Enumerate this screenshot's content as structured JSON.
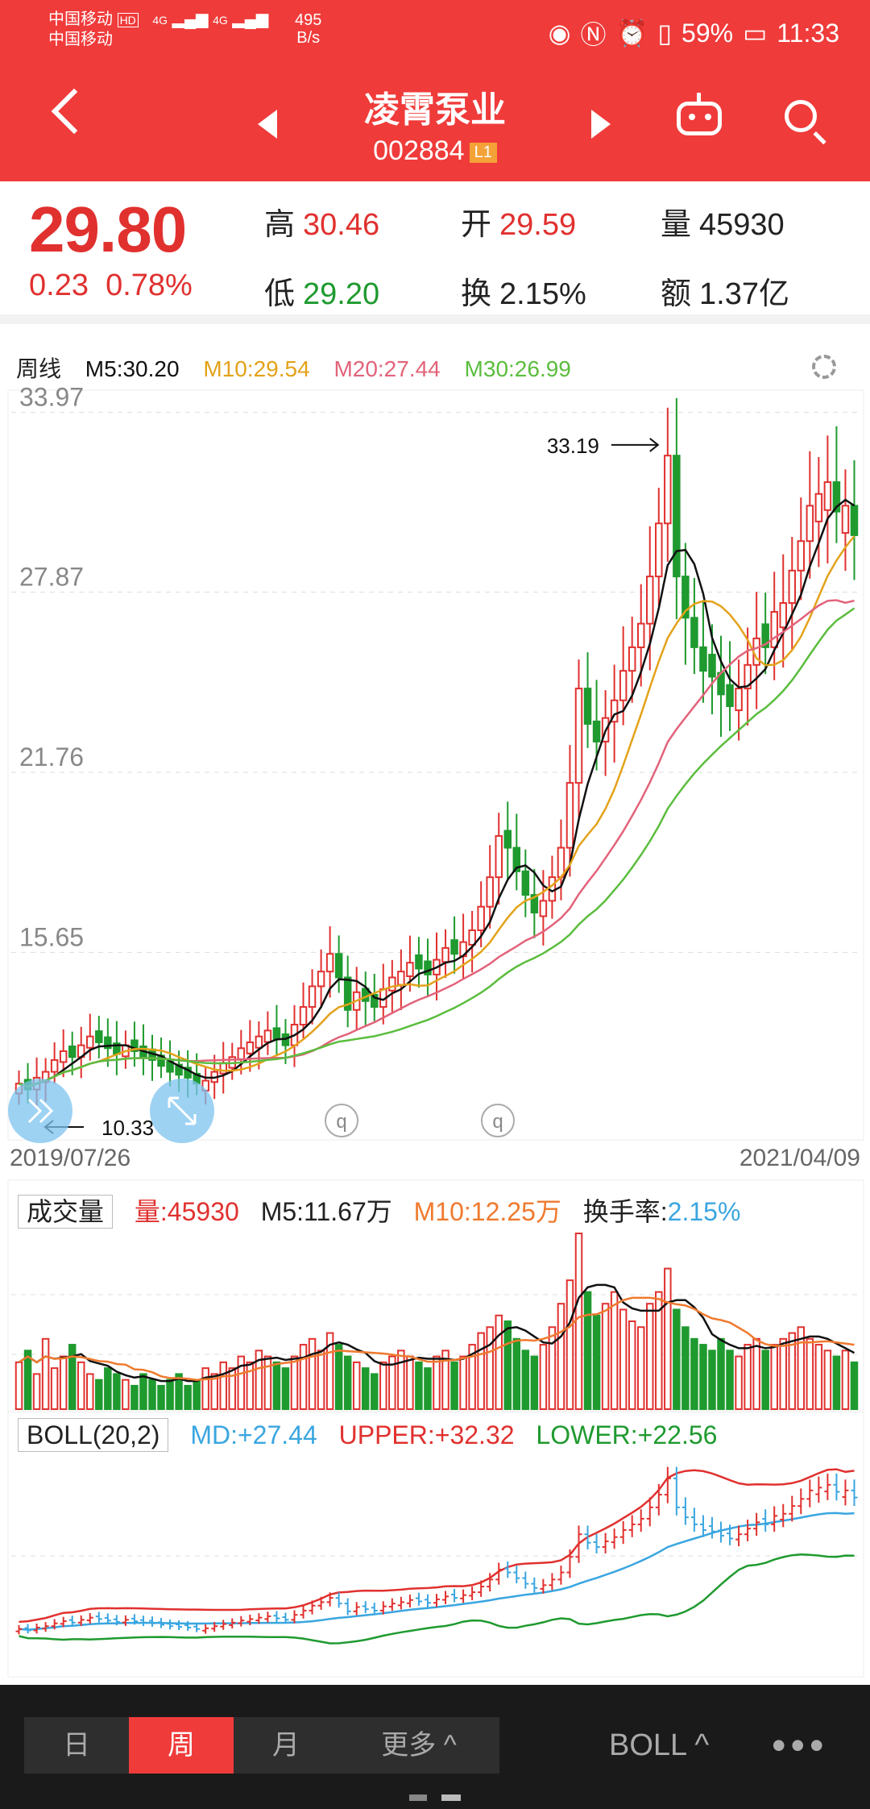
{
  "status_bar": {
    "carrier1": "中国移动",
    "carrier1_badge": "HD",
    "carrier2": "中国移动",
    "signal1": "4G",
    "signal2": "4G",
    "speed_value": "495",
    "speed_unit": "B/s",
    "battery": "59%",
    "time": "11:33"
  },
  "header": {
    "stock_name": "凌霄泵业",
    "stock_code": "002884",
    "level_badge": "L1"
  },
  "quote": {
    "price": "29.80",
    "change": "0.23",
    "change_pct": "0.78%",
    "high_label": "高",
    "high": "30.46",
    "low_label": "低",
    "low": "29.20",
    "open_label": "开",
    "open": "29.59",
    "turnover_label": "换",
    "turnover": "2.15%",
    "volume_label": "量",
    "volume": "45930",
    "amount_label": "额",
    "amount": "1.37亿"
  },
  "main_chart": {
    "period_label": "周线",
    "ma5": "M5:30.20",
    "ma10": "M10:29.54",
    "ma20": "M20:27.44",
    "ma30": "M30:26.99",
    "y_ticks": [
      "33.97",
      "27.87",
      "21.76",
      "15.65"
    ],
    "max_label": "33.19",
    "min_label": "10.33",
    "start_date": "2019/07/26",
    "end_date": "2021/04/09",
    "marker_q": "q"
  },
  "volume_chart": {
    "label": "成交量",
    "vol": "量:45930",
    "m5": "M5:11.67万",
    "m10": "M10:12.25万",
    "turnover": "换手率:",
    "turnover_val": "2.15%"
  },
  "boll_chart": {
    "label": "BOLL(20,2)",
    "md": "MD:+27.44",
    "upper": "UPPER:+32.32",
    "lower": "LOWER:+22.56"
  },
  "bottom_bar": {
    "tabs": [
      "日",
      "周",
      "月",
      "更多 ^"
    ],
    "indicator": "BOLL ^",
    "more": "•••"
  },
  "colors": {
    "header_red": "#ef3b3a",
    "up_red": "#e0312f",
    "down_green": "#1f9a2f",
    "ma5": "#111111",
    "ma10": "#e3a21a",
    "ma20": "#e2637a",
    "ma30": "#5bbd3e",
    "boll_md": "#3aa6e0"
  },
  "chart_data": [
    {
      "type": "candlestick",
      "title": "周线",
      "x_range": [
        "2019/07/26",
        "2021/04/09"
      ],
      "y_ticks": [
        33.97,
        27.87,
        21.76,
        15.65
      ],
      "ylim": [
        9.4,
        34.5
      ],
      "ma": {
        "M5": 30.2,
        "M10": 29.54,
        "M20": 27.44,
        "M30": 26.99
      },
      "annotations": {
        "max": 33.19,
        "min": 10.33
      },
      "close_approx": [
        11.2,
        11.0,
        11.4,
        11.6,
        12.0,
        12.3,
        12.1,
        12.5,
        12.8,
        12.6,
        12.4,
        12.2,
        12.5,
        12.3,
        12.1,
        12.0,
        11.8,
        11.6,
        11.5,
        11.4,
        11.2,
        11.3,
        11.6,
        11.9,
        12.1,
        12.4,
        12.6,
        12.8,
        13.0,
        12.7,
        12.5,
        13.2,
        13.8,
        14.5,
        15.0,
        15.6,
        14.8,
        13.7,
        14.3,
        14.0,
        13.8,
        14.4,
        14.8,
        15.0,
        15.3,
        15.1,
        14.9,
        15.4,
        15.8,
        15.6,
        16.0,
        16.4,
        17.2,
        18.2,
        19.6,
        19.2,
        18.4,
        17.6,
        17.0,
        17.4,
        18.2,
        19.2,
        21.4,
        24.6,
        23.4,
        22.8,
        23.6,
        24.2,
        25.2,
        26.0,
        26.8,
        28.4,
        30.2,
        32.5,
        28.4,
        27.0,
        26.0,
        25.2,
        25.0,
        24.4,
        24.0,
        24.6,
        25.4,
        26.3,
        26.0,
        27.2,
        27.5,
        28.6,
        29.6,
        30.8,
        31.2,
        31.6,
        30.6,
        30.8,
        29.8
      ],
      "up_flags": [
        1,
        0,
        1,
        1,
        1,
        1,
        0,
        1,
        1,
        0,
        0,
        0,
        1,
        0,
        0,
        0,
        0,
        0,
        0,
        0,
        0,
        1,
        1,
        1,
        1,
        1,
        1,
        1,
        1,
        0,
        0,
        1,
        1,
        1,
        1,
        1,
        0,
        0,
        1,
        0,
        0,
        1,
        1,
        1,
        1,
        0,
        0,
        1,
        1,
        0,
        1,
        1,
        1,
        1,
        1,
        0,
        0,
        0,
        0,
        1,
        1,
        1,
        1,
        1,
        0,
        0,
        1,
        1,
        1,
        1,
        1,
        1,
        1,
        1,
        0,
        0,
        0,
        0,
        0,
        0,
        0,
        1,
        1,
        1,
        0,
        1,
        1,
        1,
        1,
        1,
        1,
        1,
        0,
        1,
        0
      ]
    },
    {
      "type": "bar",
      "title": "成交量",
      "vol": 45930,
      "M5": "11.67万",
      "M10": "12.25万",
      "turnover_rate": "2.15%",
      "values_approx_wan": [
        8,
        10,
        6,
        12,
        7,
        9,
        11,
        8,
        6,
        5,
        7,
        6,
        5,
        4,
        6,
        5,
        4,
        5,
        6,
        4,
        5,
        7,
        6,
        8,
        7,
        9,
        8,
        10,
        9,
        8,
        7,
        9,
        11,
        12,
        10,
        13,
        11,
        9,
        8,
        7,
        6,
        8,
        9,
        10,
        9,
        8,
        7,
        9,
        10,
        8,
        9,
        11,
        13,
        14,
        16,
        15,
        12,
        10,
        9,
        11,
        14,
        18,
        22,
        30,
        20,
        16,
        18,
        20,
        17,
        15,
        14,
        18,
        20,
        24,
        17,
        14,
        12,
        11,
        10,
        12,
        10,
        9,
        11,
        12,
        10,
        11,
        12,
        13,
        14,
        12,
        11,
        10,
        9,
        10,
        8
      ]
    },
    {
      "type": "line",
      "title": "BOLL(20,2)",
      "series": [
        {
          "name": "MD",
          "last": 27.44
        },
        {
          "name": "UPPER",
          "last": 32.32
        },
        {
          "name": "LOWER",
          "last": 22.56
        }
      ]
    }
  ]
}
